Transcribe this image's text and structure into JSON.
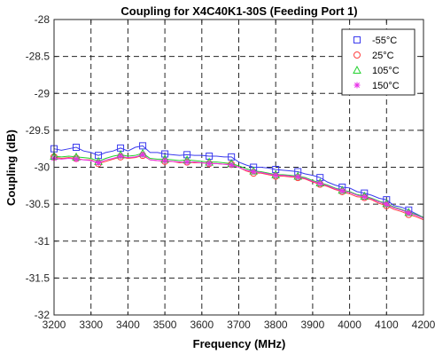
{
  "chart_data": {
    "type": "line",
    "title": "Coupling for X4C40K1-30S (Feeding Port 1)",
    "xlabel": "Frequency (MHz)",
    "ylabel": "Coupling (dB)",
    "xlim": [
      3200,
      4200
    ],
    "ylim": [
      -32,
      -28
    ],
    "xticks": [
      3200,
      3300,
      3400,
      3500,
      3600,
      3700,
      3800,
      3900,
      4000,
      4100,
      4200
    ],
    "yticks": [
      -32,
      -31.5,
      -31,
      -30.5,
      -30,
      -29.5,
      -29,
      -28.5,
      -28
    ],
    "grid": true,
    "legend_position": "top-right",
    "x": [
      3200,
      3220,
      3240,
      3260,
      3280,
      3300,
      3320,
      3340,
      3360,
      3380,
      3400,
      3420,
      3440,
      3460,
      3480,
      3500,
      3520,
      3540,
      3560,
      3580,
      3600,
      3620,
      3640,
      3660,
      3680,
      3700,
      3720,
      3740,
      3760,
      3780,
      3800,
      3820,
      3840,
      3860,
      3880,
      3900,
      3920,
      3940,
      3960,
      3980,
      4000,
      4020,
      4040,
      4060,
      4080,
      4100,
      4120,
      4140,
      4160,
      4180,
      4200
    ],
    "series": [
      {
        "name": "-55°C",
        "color": "#3a3aee",
        "marker": "square",
        "values": [
          -29.75,
          -29.77,
          -29.75,
          -29.73,
          -29.78,
          -29.8,
          -29.84,
          -29.8,
          -29.78,
          -29.74,
          -29.78,
          -29.73,
          -29.71,
          -29.8,
          -29.8,
          -29.82,
          -29.83,
          -29.84,
          -29.83,
          -29.84,
          -29.84,
          -29.85,
          -29.85,
          -29.86,
          -29.86,
          -29.93,
          -29.97,
          -30.0,
          -30.0,
          -30.01,
          -30.03,
          -30.04,
          -30.05,
          -30.06,
          -30.09,
          -30.11,
          -30.14,
          -30.2,
          -30.24,
          -30.27,
          -30.28,
          -30.33,
          -30.35,
          -30.38,
          -30.42,
          -30.44,
          -30.52,
          -30.54,
          -30.58,
          -30.63,
          -30.68
        ]
      },
      {
        "name": "25°C",
        "color": "#ff4040",
        "marker": "circle",
        "values": [
          -29.86,
          -29.88,
          -29.87,
          -29.88,
          -29.9,
          -29.9,
          -29.95,
          -29.92,
          -29.89,
          -29.86,
          -29.88,
          -29.87,
          -29.84,
          -29.9,
          -29.91,
          -29.92,
          -29.92,
          -29.94,
          -29.93,
          -29.94,
          -29.94,
          -29.95,
          -29.95,
          -29.96,
          -29.96,
          -30.0,
          -30.05,
          -30.08,
          -30.08,
          -30.1,
          -30.12,
          -30.12,
          -30.13,
          -30.14,
          -30.16,
          -30.2,
          -30.23,
          -30.26,
          -30.3,
          -30.33,
          -30.36,
          -30.4,
          -30.41,
          -30.44,
          -30.49,
          -30.52,
          -30.57,
          -30.6,
          -30.64,
          -30.67,
          -30.71
        ]
      },
      {
        "name": "105°C",
        "color": "#22d22e",
        "marker": "triangle",
        "values": [
          -29.85,
          -29.86,
          -29.85,
          -29.86,
          -29.87,
          -29.88,
          -29.92,
          -29.88,
          -29.85,
          -29.83,
          -29.85,
          -29.84,
          -29.81,
          -29.88,
          -29.89,
          -29.89,
          -29.9,
          -29.91,
          -29.9,
          -29.91,
          -29.92,
          -29.93,
          -29.93,
          -29.94,
          -29.95,
          -29.98,
          -30.02,
          -30.05,
          -30.06,
          -30.08,
          -30.1,
          -30.1,
          -30.11,
          -30.12,
          -30.14,
          -30.18,
          -30.21,
          -30.24,
          -30.28,
          -30.31,
          -30.33,
          -30.37,
          -30.39,
          -30.42,
          -30.46,
          -30.49,
          -30.54,
          -30.57,
          -30.61,
          -30.64,
          -30.68
        ]
      },
      {
        "name": "150°C",
        "color": "#e833e8",
        "marker": "star",
        "values": [
          -29.88,
          -29.89,
          -29.88,
          -29.89,
          -29.9,
          -29.91,
          -29.94,
          -29.9,
          -29.88,
          -29.85,
          -29.87,
          -29.86,
          -29.83,
          -29.9,
          -29.91,
          -29.91,
          -29.92,
          -29.93,
          -29.93,
          -29.93,
          -29.94,
          -29.95,
          -29.95,
          -29.96,
          -29.97,
          -30.0,
          -30.04,
          -30.06,
          -30.07,
          -30.09,
          -30.11,
          -30.11,
          -30.12,
          -30.13,
          -30.15,
          -30.19,
          -30.22,
          -30.25,
          -30.29,
          -30.32,
          -30.34,
          -30.38,
          -30.4,
          -30.43,
          -30.47,
          -30.5,
          -30.55,
          -30.58,
          -30.62,
          -30.65,
          -30.69
        ]
      }
    ],
    "marker_x": [
      3200,
      3260,
      3320,
      3380,
      3440,
      3500,
      3560,
      3620,
      3680,
      3740,
      3800,
      3860,
      3920,
      3980,
      4040,
      4100,
      4160
    ]
  }
}
